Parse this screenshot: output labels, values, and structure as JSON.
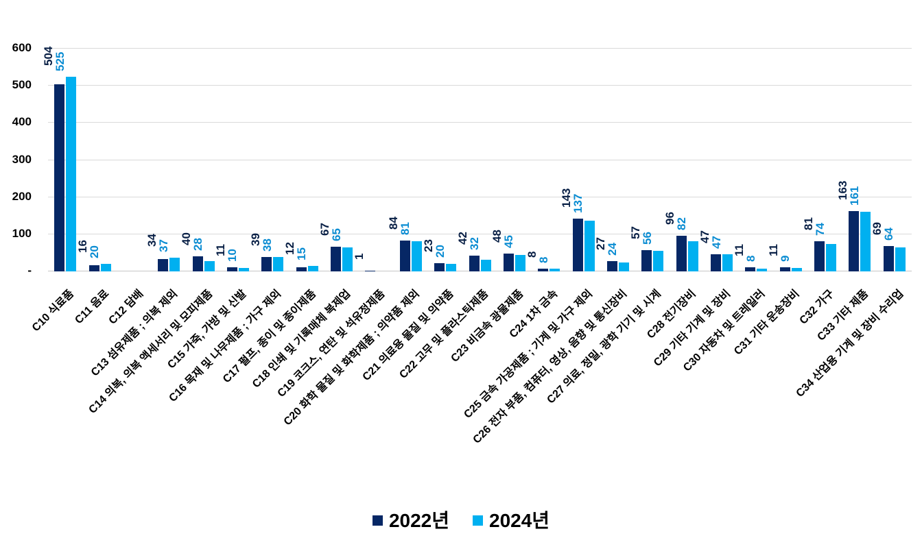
{
  "chart_data": {
    "type": "bar",
    "title": "",
    "xlabel": "",
    "ylabel": "",
    "ylim": [
      0,
      600
    ],
    "ytick_step": 100,
    "ytick_labels": [
      "-",
      "100",
      "200",
      "300",
      "400",
      "500",
      "600"
    ],
    "grid": true,
    "legend_position": "bottom",
    "bar_value_labels_rotated": "vertical",
    "category_labels_rotated": "45deg",
    "categories": [
      "C10 식료품",
      "C11 음료",
      "C12 담배",
      "C13 섬유제품 ; 의복 제외",
      "C14 의복, 의복 액세서리 및 모피제품",
      "C15 가죽, 가방 및 신발",
      "C16 목재 및 나무제품 ; 가구 제외",
      "C17 펄프, 종이 및 종이제품",
      "C18 인쇄 및 기록매체 복제업",
      "C19 코크스, 연탄 및 석유정제품",
      "C20 화학 물질 및 화학제품 ; 의약품 제외",
      "C21 의료용 물질 및 의약품",
      "C22 고무 및 플라스틱제품",
      "C23 비금속 광물제품",
      "C24 1차 금속",
      "C25 금속 가공제품 ; 기계 및 가구 제외",
      "C26 전자 부품, 컴퓨터, 영상, 음향 및 통신장비",
      "C27 의료, 정밀, 광학 기기 및 시계",
      "C28 전기장비",
      "C29 기타 기계 및 장비",
      "C30 자동차 및 트레일러",
      "C31 기타 운송장비",
      "C32 가구",
      "C33 기타 제품",
      "C34 산업용 기계 및 장비 수리업"
    ],
    "series": [
      {
        "name": "2022년",
        "color": "#062765",
        "label_color": "#081f45",
        "values": [
          504,
          16,
          null,
          34,
          40,
          11,
          39,
          12,
          67,
          1,
          84,
          23,
          42,
          48,
          8,
          143,
          27,
          57,
          96,
          47,
          11,
          11,
          81,
          163,
          69
        ]
      },
      {
        "name": "2024년",
        "color": "#00b0f0",
        "label_color": "#0a8cd2",
        "values": [
          525,
          20,
          null,
          37,
          28,
          10,
          38,
          15,
          65,
          null,
          81,
          20,
          32,
          45,
          8,
          137,
          24,
          56,
          82,
          47,
          8,
          9,
          74,
          161,
          64
        ]
      }
    ]
  },
  "colors": {
    "gridline": "#d9d9d9",
    "axis_line": "#c6c6c6",
    "axis_text": "#000000",
    "background": "#ffffff"
  }
}
